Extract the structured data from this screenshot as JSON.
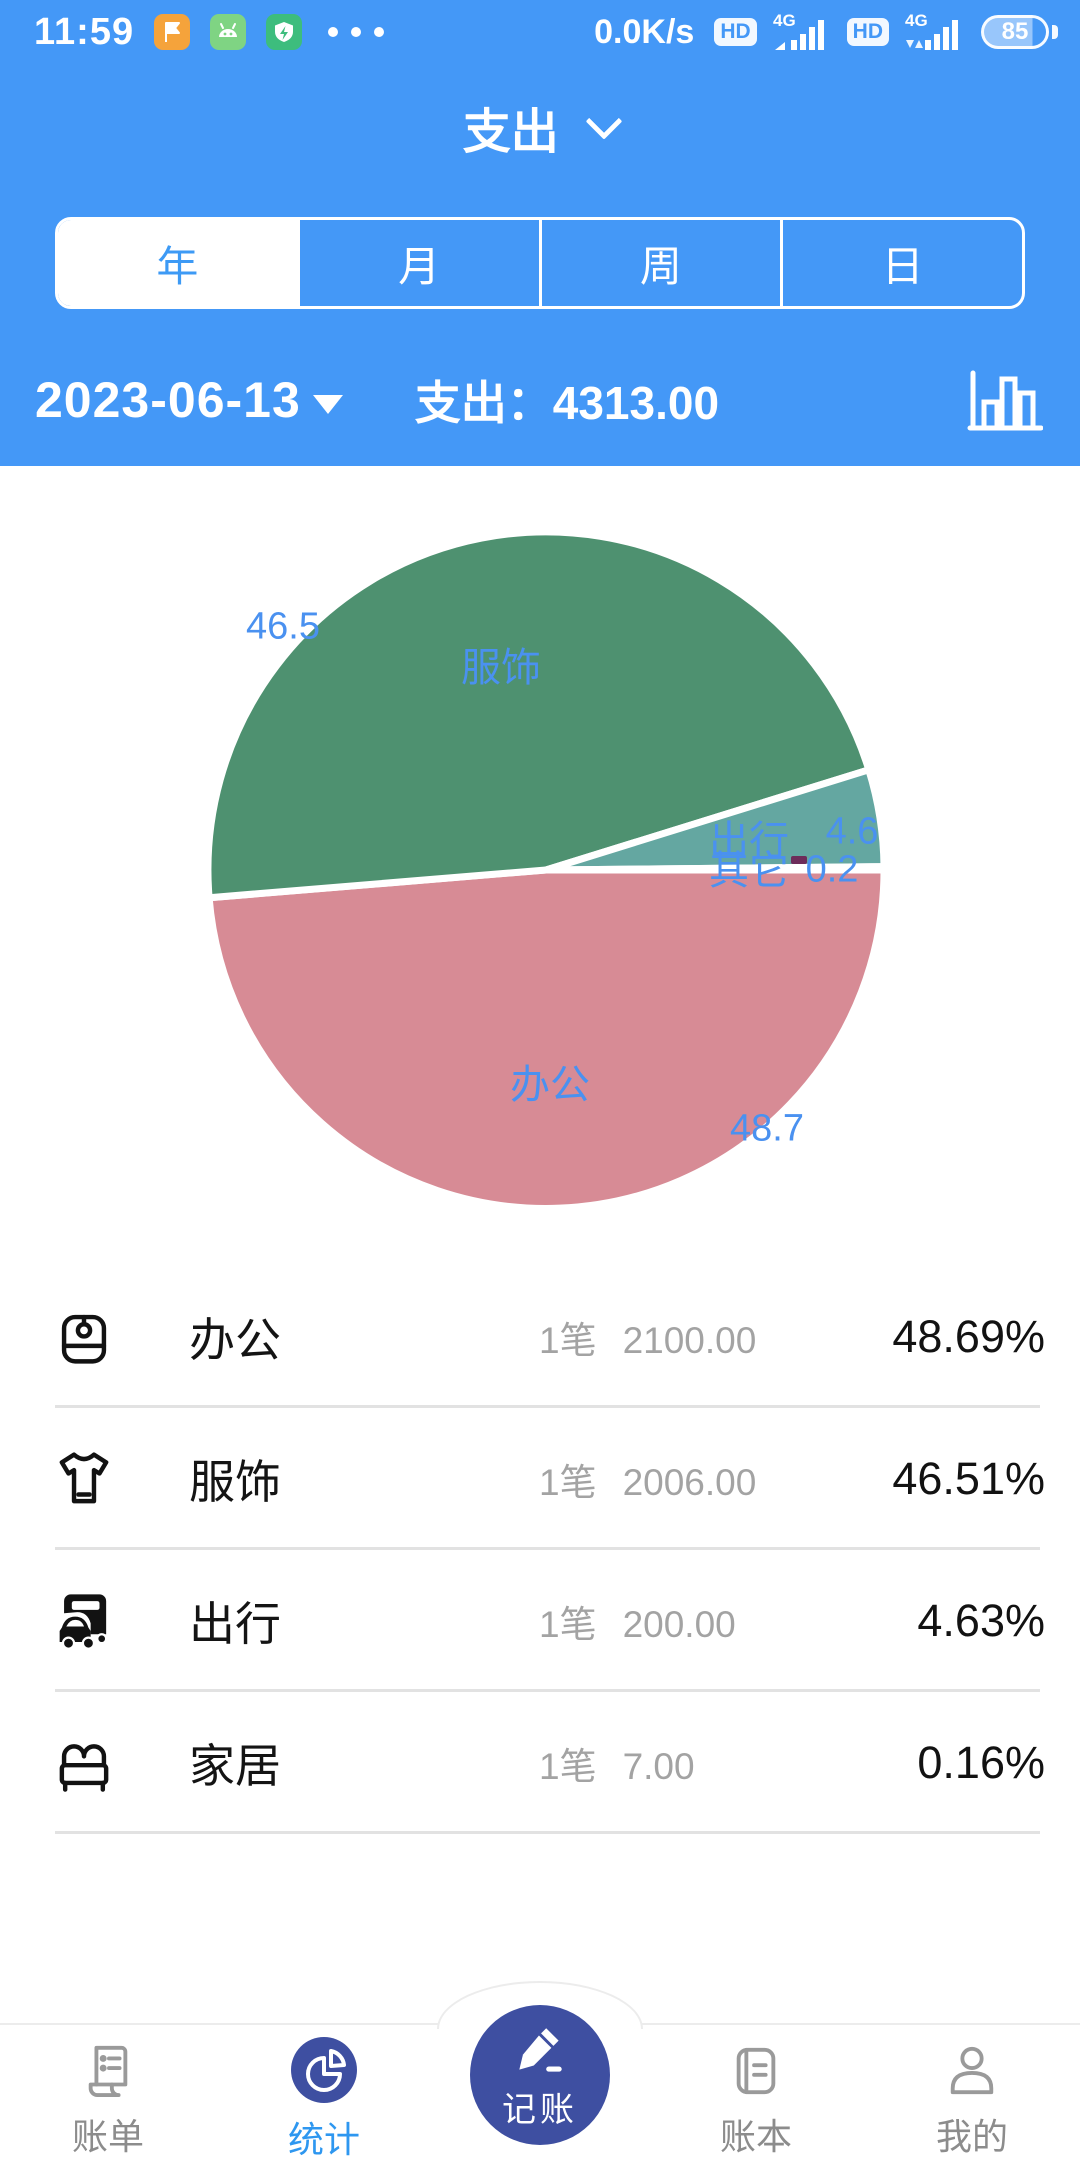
{
  "status_bar": {
    "time": "11:59",
    "net_speed": "0.0K/s",
    "hd1": "HD",
    "net1": "4G",
    "hd2": "HD",
    "net2": "4G",
    "battery_level": "85"
  },
  "header": {
    "title": "支出"
  },
  "period_tabs": {
    "items": [
      {
        "label": "年",
        "active": true
      },
      {
        "label": "月",
        "active": false
      },
      {
        "label": "周",
        "active": false
      },
      {
        "label": "日",
        "active": false
      }
    ]
  },
  "date_bar": {
    "date": "2023-06-13",
    "summary": "支出：4313.00"
  },
  "chart_data": {
    "type": "pie",
    "slices": [
      {
        "name": "办公",
        "percent": 48.69,
        "display_value": "48.7",
        "color": "#d78b95"
      },
      {
        "name": "服饰",
        "percent": 46.51,
        "display_value": "46.5",
        "color": "#4e9170"
      },
      {
        "name": "出行",
        "percent": 4.63,
        "display_value": "4.6",
        "color": "#64a7a1"
      },
      {
        "name": "其它",
        "percent": 0.16,
        "display_value": "0.2",
        "color": "#6d2c5a"
      }
    ],
    "label_color": "#4a91f0",
    "start_angle": "east",
    "direction": "clockwise",
    "legend": false
  },
  "category_list": {
    "rows": [
      {
        "icon": "office-bag-icon",
        "name": "办公",
        "count": "1笔",
        "amount": "2100.00",
        "percent": "48.69%"
      },
      {
        "icon": "tshirt-icon",
        "name": "服饰",
        "count": "1笔",
        "amount": "2006.00",
        "percent": "46.51%"
      },
      {
        "icon": "bus-icon",
        "name": "出行",
        "count": "1笔",
        "amount": "200.00",
        "percent": "4.63%"
      },
      {
        "icon": "bed-icon",
        "name": "家居",
        "count": "1笔",
        "amount": "7.00",
        "percent": "0.16%"
      }
    ]
  },
  "bottom_nav": {
    "items": [
      {
        "label": "账单",
        "icon": "bill-receipt-icon",
        "active": false
      },
      {
        "label": "统计",
        "icon": "pie-chart-icon",
        "active": true
      },
      {
        "label": "记账",
        "icon": "pencil-icon",
        "center": true
      },
      {
        "label": "账本",
        "icon": "ledger-book-icon",
        "active": false
      },
      {
        "label": "我的",
        "icon": "person-icon",
        "active": false
      }
    ]
  }
}
